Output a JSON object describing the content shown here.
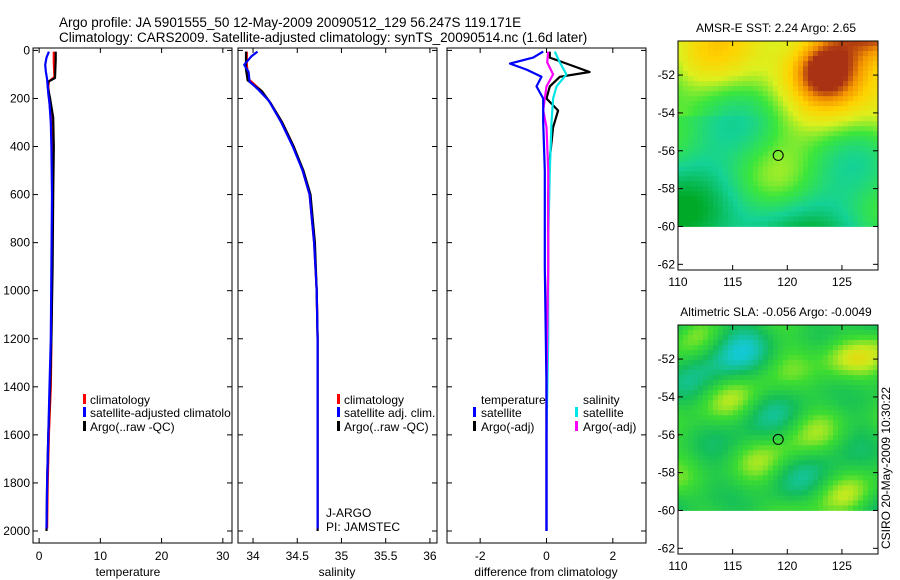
{
  "header": {
    "title_line1": "Argo profile: JA 5901555_50 12-May-2009 20090512_129 56.247S 119.171E",
    "title_line2": "Climatology: CARS2009. Satellite-adjusted climatology: synTS_20090514.nc (1.6d later)"
  },
  "side_stamp": "CSIRO 20-May-2009 10:30:22",
  "chart_data": [
    {
      "type": "line",
      "id": "temperature",
      "xlabel": "temperature",
      "xlim": [
        -1,
        31.5
      ],
      "ylim": [
        2050,
        -10
      ],
      "xticks": [
        "0",
        "10",
        "20",
        "30"
      ],
      "xtick_values": [
        0,
        10,
        20,
        30
      ],
      "yticks": [
        "0",
        "200",
        "400",
        "600",
        "800",
        "1000",
        "1200",
        "1400",
        "1600",
        "1800",
        "2000"
      ],
      "ytick_values": [
        0,
        200,
        400,
        600,
        800,
        1000,
        1200,
        1400,
        1600,
        1800,
        2000
      ],
      "legend": [
        "climatology",
        "satellite-adjusted climatolo",
        "Argo(..raw -QC)"
      ],
      "series": [
        {
          "name": "climatology",
          "color": "#ff0000",
          "x": [
            2.4,
            2.4,
            2.5,
            1.6,
            1.5,
            1.7,
            2.0,
            2.1,
            2.2,
            2.1,
            2.0,
            1.9,
            1.6,
            1.4,
            1.3
          ],
          "y": [
            5,
            50,
            110,
            130,
            150,
            220,
            300,
            400,
            600,
            900,
            1200,
            1400,
            1600,
            1800,
            1990
          ]
        },
        {
          "name": "Argo(..raw -QC)",
          "color": "#000000",
          "x": [
            2.7,
            2.7,
            2.6,
            1.5,
            1.4,
            1.8,
            2.3,
            2.4,
            2.3,
            2.2,
            2.0,
            1.8,
            1.5,
            1.3,
            1.2
          ],
          "y": [
            5,
            40,
            115,
            130,
            150,
            200,
            280,
            400,
            600,
            900,
            1200,
            1400,
            1600,
            1800,
            2000
          ]
        },
        {
          "name": "satellite-adjusted climatology",
          "color": "#0000ff",
          "x": [
            1.6,
            1.2,
            1.0,
            1.1,
            1.3,
            1.4,
            1.5,
            1.7,
            1.9,
            2.0,
            2.1,
            2.0,
            1.9,
            1.7,
            1.5,
            1.3,
            1.2
          ],
          "y": [
            5,
            30,
            60,
            90,
            120,
            150,
            180,
            220,
            300,
            400,
            600,
            900,
            1200,
            1400,
            1600,
            1800,
            1990
          ]
        }
      ]
    },
    {
      "type": "line",
      "id": "salinity",
      "xlabel": "salinity",
      "xlim": [
        33.83,
        36.08
      ],
      "ylim": [
        2050,
        -10
      ],
      "xticks": [
        "34",
        "34.5",
        "35",
        "35.5",
        "36"
      ],
      "xtick_values": [
        34,
        34.5,
        35,
        35.5,
        36
      ],
      "legend": [
        "climatology",
        "satellite adj. clim.",
        "Argo(..raw -QC)"
      ],
      "annotation": [
        "J-ARGO",
        "PI: JAMSTEC"
      ],
      "series": [
        {
          "name": "climatology",
          "color": "#ff0000",
          "x": [
            33.93,
            33.93,
            33.95,
            34.1,
            34.2,
            34.33,
            34.46,
            34.56,
            34.64,
            34.69,
            34.72,
            34.73,
            34.73,
            34.73
          ],
          "y": [
            5,
            60,
            120,
            170,
            220,
            300,
            400,
            500,
            600,
            800,
            1000,
            1200,
            1600,
            1990
          ]
        },
        {
          "name": "Argo(..raw -QC)",
          "color": "#000000",
          "x": [
            33.92,
            33.92,
            33.94,
            34.1,
            34.2,
            34.33,
            34.46,
            34.57,
            34.65,
            34.7,
            34.72,
            34.73,
            34.73,
            34.73
          ],
          "y": [
            5,
            80,
            125,
            170,
            220,
            300,
            400,
            500,
            600,
            800,
            1000,
            1200,
            1600,
            2000
          ]
        },
        {
          "name": "satellite adj. clim.",
          "color": "#0000ff",
          "x": [
            34.05,
            33.98,
            33.9,
            33.95,
            33.96,
            34.05,
            34.18,
            34.32,
            34.45,
            34.56,
            34.64,
            34.69,
            34.72,
            34.73,
            34.73,
            34.73
          ],
          "y": [
            5,
            25,
            60,
            90,
            130,
            160,
            210,
            300,
            400,
            500,
            600,
            800,
            1000,
            1200,
            1600,
            1990
          ]
        }
      ]
    },
    {
      "type": "line",
      "id": "difference",
      "xlabel": "difference from climatology",
      "xlim": [
        -3.0,
        3.0
      ],
      "ylim": [
        2050,
        -10
      ],
      "xticks": [
        "-2",
        "0",
        "2"
      ],
      "xtick_values": [
        -2,
        0,
        2
      ],
      "legend_headers": [
        "temperature",
        "salinity"
      ],
      "legend": [
        "satellite",
        "Argo(-adj)",
        "satellite",
        "Argo(-adj)"
      ],
      "series": [
        {
          "name": "temperature Argo(-adj)",
          "color": "#000000",
          "x": [
            0.1,
            0.1,
            0.5,
            1.3,
            0.4,
            0.1,
            0.0,
            0.35,
            0.2,
            0.1,
            0.05,
            0.05,
            0.0,
            0.0
          ],
          "y": [
            5,
            30,
            50,
            90,
            110,
            150,
            200,
            250,
            320,
            450,
            600,
            900,
            1400,
            2000
          ]
        },
        {
          "name": "salinity satellite",
          "color": "#00e5e5",
          "x": [
            0.25,
            0.4,
            0.6,
            0.3,
            0.2,
            0.15,
            0.1,
            0.05,
            0.05,
            0.0,
            0.0
          ],
          "y": [
            5,
            50,
            100,
            150,
            200,
            300,
            500,
            800,
            1200,
            1600,
            2000
          ]
        },
        {
          "name": "salinity Argo(-adj)",
          "color": "#ff00ff",
          "x": [
            0.05,
            0.02,
            0.2,
            0.0,
            -0.05,
            -0.1,
            0.0,
            0.05,
            0.05,
            0.0,
            0.0
          ],
          "y": [
            5,
            50,
            100,
            150,
            200,
            250,
            320,
            500,
            900,
            1400,
            2000
          ]
        },
        {
          "name": "temperature satellite",
          "color": "#0000ff",
          "x": [
            -0.1,
            -0.4,
            -1.1,
            -0.6,
            -0.15,
            -0.3,
            -0.1,
            -0.1,
            -0.05,
            -0.05,
            0.0,
            0.0
          ],
          "y": [
            5,
            30,
            55,
            80,
            110,
            150,
            200,
            300,
            500,
            900,
            1400,
            2000
          ]
        }
      ]
    },
    {
      "type": "heatmap",
      "id": "sst",
      "title": "AMSR-E SST: 2.24 Argo: 2.65",
      "xlim": [
        110,
        128.3
      ],
      "ylim": [
        -62.3,
        -50.2
      ],
      "xticks": [
        "110",
        "115",
        "120",
        "125"
      ],
      "xtick_values": [
        110,
        115,
        120,
        125
      ],
      "yticks": [
        "-52",
        "-54",
        "-56",
        "-58",
        "-60",
        "-62"
      ],
      "ytick_values": [
        -52,
        -54,
        -56,
        -58,
        -60,
        -62
      ],
      "data_south_limit": -60,
      "marker": {
        "lon": 119.171,
        "lat": -56.247
      }
    },
    {
      "type": "heatmap",
      "id": "sla",
      "title": "Altimetric SLA: -0.056 Argo: -0.0049",
      "xlim": [
        110,
        128.3
      ],
      "ylim": [
        -62.3,
        -50.2
      ],
      "xticks": [
        "110",
        "115",
        "120",
        "125"
      ],
      "xtick_values": [
        110,
        115,
        120,
        125
      ],
      "yticks": [
        "-52",
        "-54",
        "-56",
        "-58",
        "-60",
        "-62"
      ],
      "ytick_values": [
        -52,
        -54,
        -56,
        -58,
        -60,
        -62
      ],
      "data_south_limit": -60,
      "marker": {
        "lon": 119.171,
        "lat": -56.247
      }
    }
  ]
}
